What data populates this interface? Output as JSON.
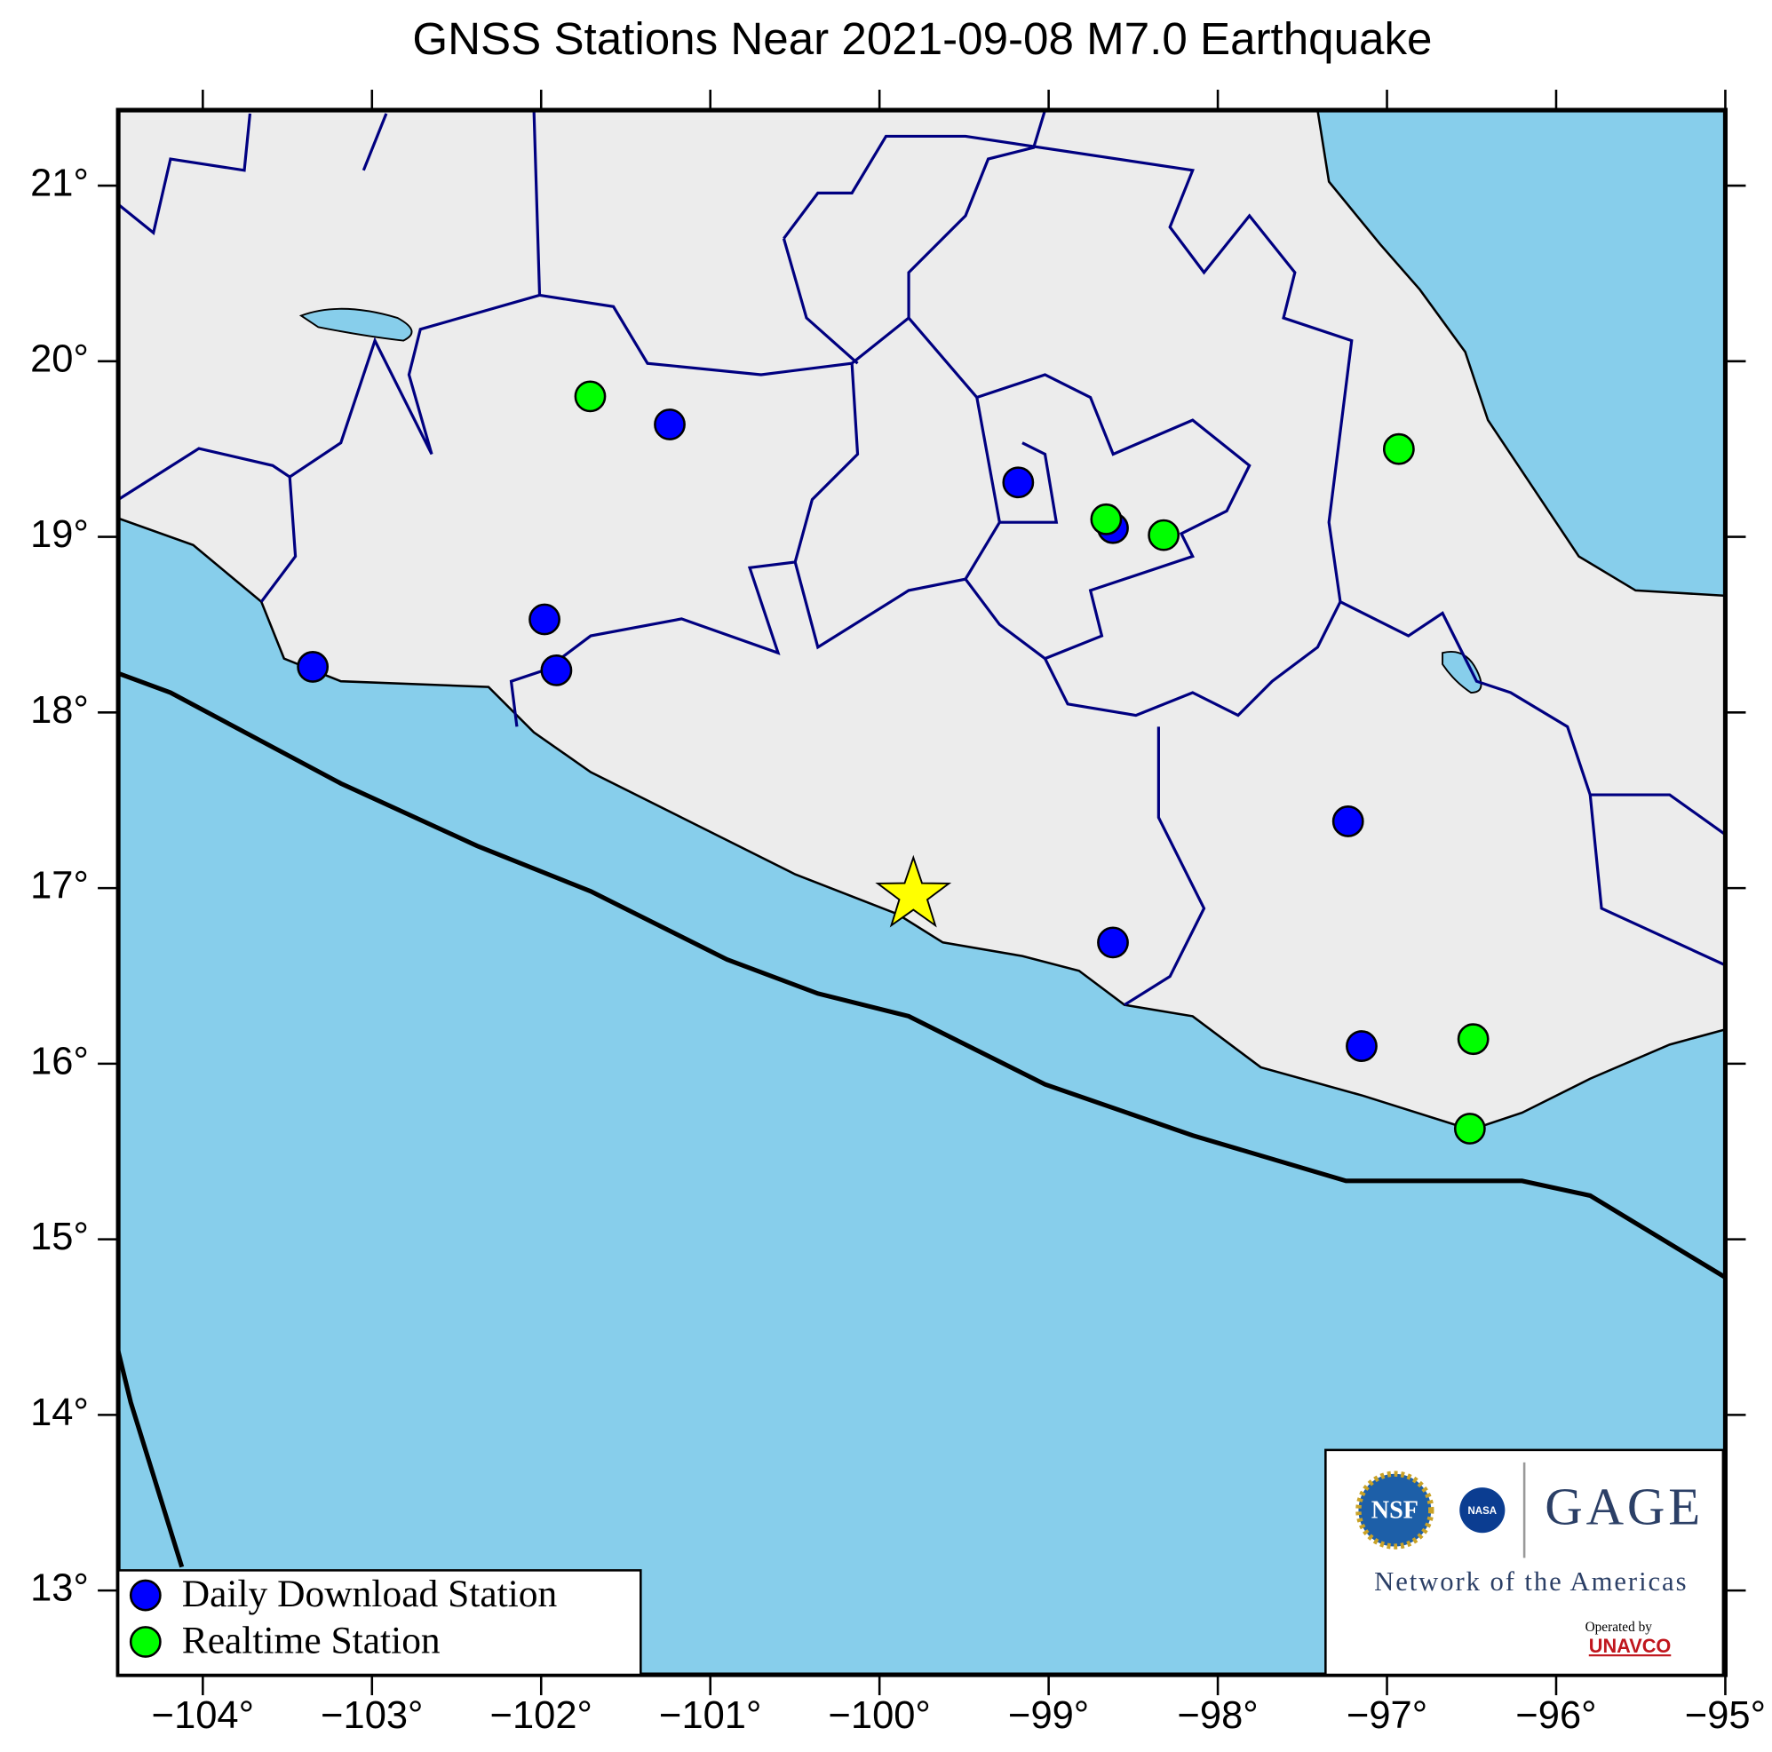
{
  "chart_data": {
    "type": "map",
    "title": "GNSS Stations Near 2021-09-08 M7.0 Earthquake",
    "xlim": [
      -104.5,
      -95
    ],
    "ylim": [
      12.52,
      21.43
    ],
    "xticks": [
      {
        "value": -104,
        "label": "−104°"
      },
      {
        "value": -103,
        "label": "−103°"
      },
      {
        "value": -102,
        "label": "−102°"
      },
      {
        "value": -101,
        "label": "−101°"
      },
      {
        "value": -100,
        "label": "−100°"
      },
      {
        "value": -99,
        "label": "−99°"
      },
      {
        "value": -98,
        "label": "−98°"
      },
      {
        "value": -97,
        "label": "−97°"
      },
      {
        "value": -96,
        "label": "−96°"
      },
      {
        "value": -95,
        "label": "−95°"
      }
    ],
    "yticks": [
      {
        "value": 13,
        "label": "13°"
      },
      {
        "value": 14,
        "label": "14°"
      },
      {
        "value": 15,
        "label": "15°"
      },
      {
        "value": 16,
        "label": "16°"
      },
      {
        "value": 17,
        "label": "17°"
      },
      {
        "value": 18,
        "label": "18°"
      },
      {
        "value": 19,
        "label": "19°"
      },
      {
        "value": 20,
        "label": "20°"
      },
      {
        "value": 21,
        "label": "21°"
      }
    ],
    "series": [
      {
        "name": "Daily Download Station",
        "color": "#0000ff",
        "x": [
          -103.35,
          -101.98,
          -101.91,
          -101.24,
          -99.18,
          -98.62,
          -98.62,
          -97.23,
          -97.15
        ],
        "y": [
          18.26,
          18.53,
          18.24,
          19.64,
          19.31,
          19.05,
          16.69,
          17.38,
          16.1
        ]
      },
      {
        "name": "Realtime Station",
        "color": "#00ff00",
        "x": [
          -101.71,
          -98.66,
          -98.32,
          -96.93,
          -96.49,
          -96.51
        ],
        "y": [
          19.8,
          19.1,
          19.01,
          19.5,
          16.14,
          15.63
        ]
      }
    ],
    "epicenter": {
      "x": -99.8,
      "y": 16.96,
      "color": "#ffff00"
    },
    "logo": {
      "nsf": "NSF",
      "nasa": "NASA",
      "name": "GAGE",
      "network": "Network of the Americas",
      "operated": "Operated by",
      "operator": "UNAVCO"
    }
  }
}
